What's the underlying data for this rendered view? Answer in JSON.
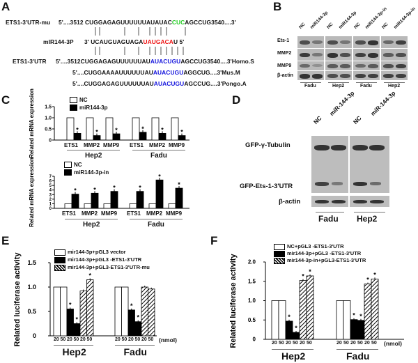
{
  "panel_labels": [
    "A",
    "B",
    "C",
    "D",
    "E",
    "F"
  ],
  "panelA": {
    "rows": [
      {
        "label": "ETS1-3'UTR-mu",
        "segments": [
          {
            "t": "5'....3512 CUGGAGAGUUUUUUAUAUAC",
            "c": ""
          },
          {
            "t": "CUC",
            "c": "green"
          },
          {
            "t": "AGCCUG3540....3'",
            "c": ""
          }
        ]
      },
      {
        "label": "mIR144-3P",
        "segments": [
          {
            "t": "3'  UCAUGUAGUAGA",
            "c": ""
          },
          {
            "t": "UAUGACA",
            "c": "red"
          },
          {
            "t": "U  5'",
            "c": ""
          }
        ]
      },
      {
        "label": "ETS1-3'UTR",
        "segments": [
          {
            "t": "5'....3512CUGGAGAGUUUUUUAU",
            "c": ""
          },
          {
            "t": "AUACUGU",
            "c": "blue"
          },
          {
            "t": "AGCCUG3540....3'Homo.S",
            "c": ""
          }
        ]
      },
      {
        "label": "",
        "segments": [
          {
            "t": "5'....CUGGAAAAUUUUUUAU",
            "c": ""
          },
          {
            "t": "AUACUGU",
            "c": "blue"
          },
          {
            "t": "AGGCUG....3'Mus.M",
            "c": ""
          }
        ]
      },
      {
        "label": "",
        "segments": [
          {
            "t": "5'....CUGGAGAGUUUUUUAU",
            "c": ""
          },
          {
            "t": "AUACUGU",
            "c": "blue"
          },
          {
            "t": "AGCCUG....3'Pongo.A",
            "c": ""
          }
        ]
      }
    ]
  },
  "panelB": {
    "lanes": [
      "NC",
      "miR144-3p",
      "NC",
      "miR144-3p",
      "NC",
      "miR144-3p-in",
      "NC",
      "miR144-3p-in"
    ],
    "rows": [
      "Ets-1",
      "MMP2",
      "MMP9",
      "β-actin"
    ],
    "cells": [
      "Fadu",
      "Hep2",
      "Fadu",
      "Hep2"
    ]
  },
  "panelD": {
    "lanes": [
      "NC",
      "miR-144-3p",
      "NC",
      "miR-144-3p"
    ],
    "rows": [
      "GFP-γ-Tubulin",
      "GFP-Ets-1-3'UTR",
      "β-actin"
    ],
    "cells": [
      "Fadu",
      "Hep2"
    ]
  },
  "colors": {
    "sequence_mutation": "#22cc22",
    "mirna_seed": "#ee1111",
    "target_site": "#1515dd"
  },
  "chart_data": [
    {
      "id": "C-top",
      "type": "bar",
      "ylabel": "Related mRNA expression",
      "ylim": [
        0,
        1.5
      ],
      "yticks": [
        "0",
        "0.5",
        "1.0",
        "1.5"
      ],
      "legend": [
        "NC",
        "miR144-3p"
      ],
      "legend_placement": "top-left",
      "groups": [
        "Hep2",
        "Fadu"
      ],
      "categories": [
        "ETS1",
        "MMP2",
        "MMP9"
      ],
      "series": [
        {
          "name": "NC",
          "fill": "white",
          "values": [
            [
              1,
              1,
              1
            ],
            [
              1,
              1,
              1
            ]
          ]
        },
        {
          "name": "miR144-3p",
          "fill": "black",
          "values": [
            [
              0.3,
              0.2,
              0.28
            ],
            [
              0.35,
              0.3,
              0.2
            ]
          ],
          "significant": true
        }
      ]
    },
    {
      "id": "C-bottom",
      "type": "bar",
      "ylabel": "Related mRNA expression",
      "ylim": [
        0,
        7
      ],
      "yticks": [
        "0",
        "1",
        "2",
        "3",
        "4",
        "5",
        "6",
        "7"
      ],
      "legend": [
        "NC",
        "miR144-3p-in"
      ],
      "legend_placement": "top-left",
      "groups": [
        "Hep2",
        "Fadu"
      ],
      "categories": [
        "ETS1",
        "MMP2",
        "MMP9"
      ],
      "series": [
        {
          "name": "NC",
          "fill": "white",
          "values": [
            [
              1,
              1,
              1
            ],
            [
              1,
              1,
              1
            ]
          ]
        },
        {
          "name": "miR144-3p-in",
          "fill": "black",
          "values": [
            [
              3.1,
              3.3,
              3.7
            ],
            [
              3.7,
              6.2,
              4.4
            ]
          ],
          "significant": true
        }
      ]
    },
    {
      "id": "E",
      "type": "bar",
      "ylabel": "Related luciferase activity",
      "ylim": [
        0,
        1.5
      ],
      "yticks": [
        "0",
        "0.5",
        "1.0",
        "1.5"
      ],
      "legend_placement": "top",
      "groups": [
        "Hep2",
        "Fadu"
      ],
      "doses": [
        "20",
        "50"
      ],
      "dose_unit": "(nmol)",
      "series": [
        {
          "name": "mir144-3p+pGL3 vector",
          "fill": "white",
          "values": [
            [
              1,
              1
            ],
            [
              1,
              1
            ]
          ]
        },
        {
          "name": "mir144-3p+pGL3 -ETS1-3'UTR",
          "fill": "black",
          "values": [
            [
              0.55,
              0.25
            ],
            [
              0.53,
              0.29
            ]
          ],
          "significant": [
            [
              true,
              true
            ],
            [
              true,
              true
            ]
          ]
        },
        {
          "name": "mir144-3p+pGL3-ETS1-3'UTR-mu",
          "fill": "hatched",
          "values": [
            [
              0.92,
              1.15
            ],
            [
              1.0,
              0.96
            ]
          ],
          "significant": [
            [
              false,
              true
            ],
            [
              false,
              false
            ]
          ]
        }
      ]
    },
    {
      "id": "F",
      "type": "bar",
      "ylabel": "Related luciferase activity",
      "ylim": [
        0,
        2.0
      ],
      "yticks": [
        "0",
        "0.5",
        "1.0",
        "1.5",
        "2.0"
      ],
      "legend_placement": "top",
      "groups": [
        "Hep2",
        "Fadu"
      ],
      "doses": [
        "20",
        "50"
      ],
      "dose_unit": "(nmol)",
      "series": [
        {
          "name": "NC+pGL3 -ETS1-3'UTR",
          "fill": "white",
          "values": [
            [
              1,
              1
            ],
            [
              1,
              1
            ]
          ]
        },
        {
          "name": "mir144-3p+pGL3 -ETS1-3'UTR",
          "fill": "black",
          "values": [
            [
              0.47,
              0.18
            ],
            [
              0.51,
              0.49
            ]
          ],
          "significant": [
            [
              true,
              true
            ],
            [
              true,
              true
            ]
          ]
        },
        {
          "name": "mir144-3p-in+pGL3-ETS1-3'UTR",
          "fill": "hatched",
          "values": [
            [
              1.52,
              1.64
            ],
            [
              1.43,
              1.56
            ]
          ],
          "significant": [
            [
              true,
              true
            ],
            [
              true,
              true
            ]
          ]
        }
      ]
    }
  ],
  "significance_marker": "*"
}
